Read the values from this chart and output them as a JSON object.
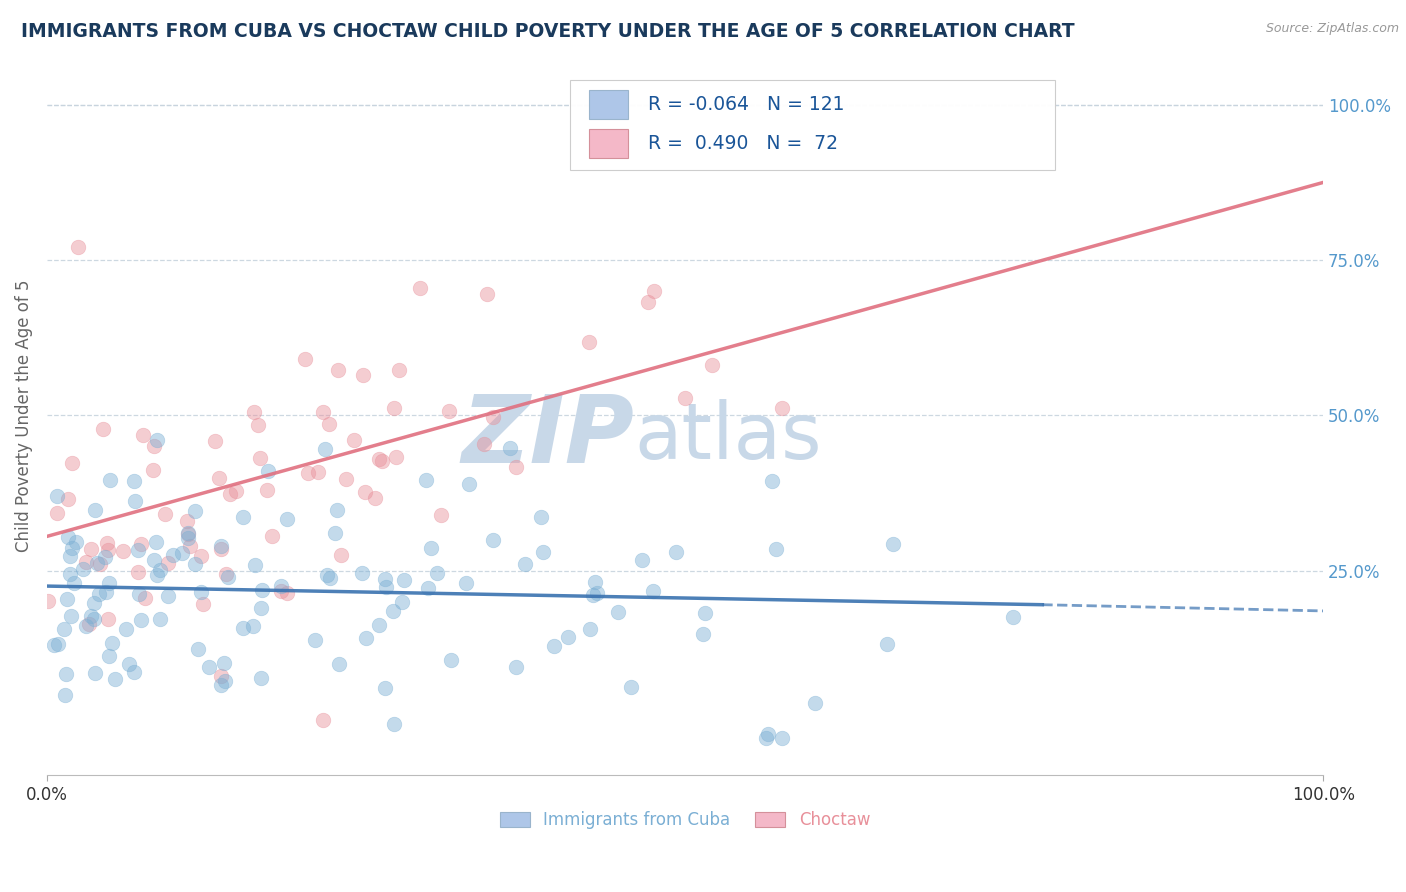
{
  "title": "IMMIGRANTS FROM CUBA VS CHOCTAW CHILD POVERTY UNDER THE AGE OF 5 CORRELATION CHART",
  "source": "Source: ZipAtlas.com",
  "ylabel": "Child Poverty Under the Age of 5",
  "xlim": [
    0.0,
    1.0
  ],
  "ylim": [
    -0.08,
    1.08
  ],
  "x_tick_labels": [
    "0.0%",
    "100.0%"
  ],
  "y_tick_labels_right": [
    "25.0%",
    "50.0%",
    "75.0%",
    "100.0%"
  ],
  "y_ticks_right": [
    0.25,
    0.5,
    0.75,
    1.0
  ],
  "legend_labels": [
    "R = -0.064   N = 121",
    "R =  0.490   N =  72"
  ],
  "legend_colors": [
    "#aec6e8",
    "#f4b8c8"
  ],
  "series_blue": {
    "name": "Immigrants from Cuba",
    "color": "#7bafd4",
    "R": -0.064,
    "N": 121
  },
  "series_pink": {
    "name": "Choctaw",
    "color": "#e8909a",
    "R": 0.49,
    "N": 72
  },
  "blue_line_solid": {
    "x0": 0.0,
    "y0": 0.225,
    "x1": 0.78,
    "y1": 0.195
  },
  "blue_line_dashed": {
    "x0": 0.78,
    "y0": 0.195,
    "x1": 1.0,
    "y1": 0.185
  },
  "pink_line": {
    "x0": 0.0,
    "y0": 0.305,
    "x1": 1.0,
    "y1": 0.875
  },
  "watermark_zip": "ZIP",
  "watermark_atlas": "atlas",
  "watermark_color": "#c8d8e8",
  "background_color": "#ffffff",
  "grid_color": "#c8d4de",
  "title_color": "#1a3a5c",
  "title_fontsize": 13.5,
  "axis_label_color": "#666666",
  "tick_label_color_right": "#5599cc",
  "tick_label_color_bottom": "#333333"
}
